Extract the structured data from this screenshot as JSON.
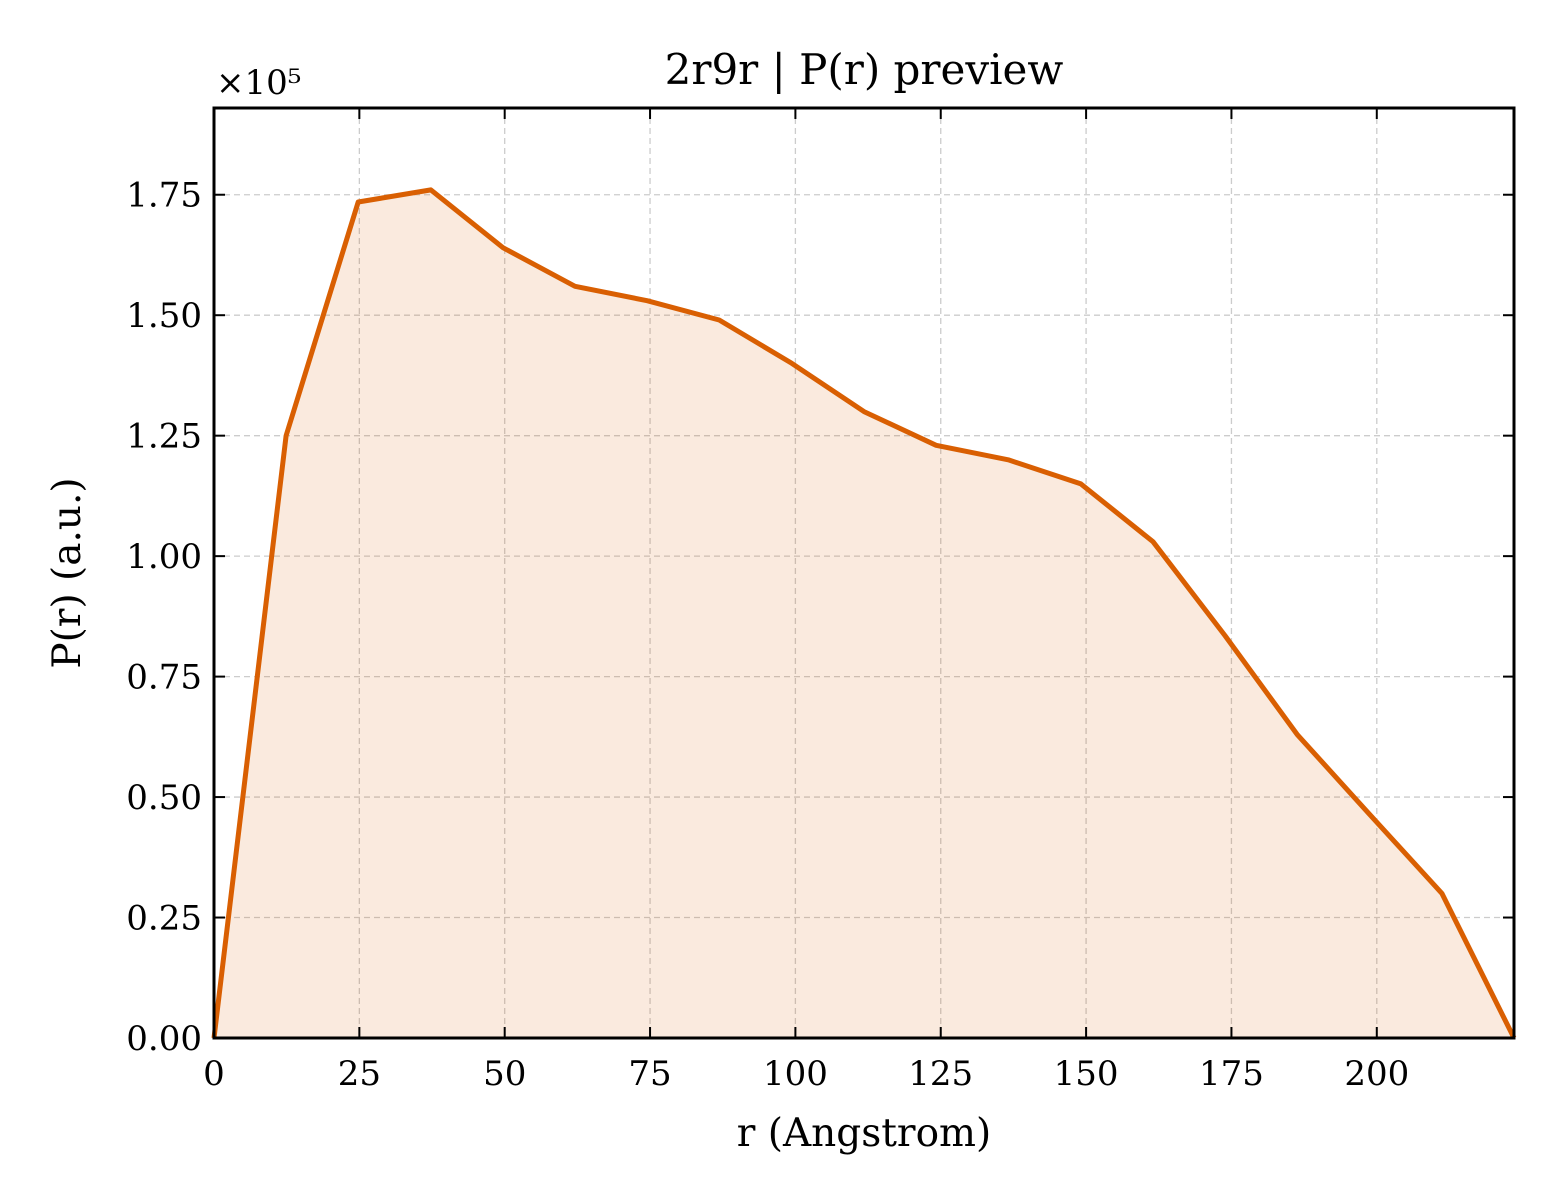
{
  "chart_data": {
    "type": "area",
    "title": "2r9r | P(r) preview",
    "xlabel": "r (Angstrom)",
    "ylabel": "P(r) (a.u.)",
    "y_scale_label": "×10⁵",
    "y_scale_factor": 100000,
    "xlim": [
      0,
      223.6
    ],
    "ylim": [
      0,
      1.93
    ],
    "x_ticks": [
      0,
      25,
      50,
      75,
      100,
      125,
      150,
      175,
      200
    ],
    "y_ticks": [
      0.0,
      0.25,
      0.5,
      0.75,
      1.0,
      1.25,
      1.5,
      1.75
    ],
    "x_tick_labels": [
      "0",
      "25",
      "50",
      "75",
      "100",
      "125",
      "150",
      "175",
      "200"
    ],
    "y_tick_labels": [
      "0.00",
      "0.25",
      "0.50",
      "0.75",
      "1.00",
      "1.25",
      "1.50",
      "1.75"
    ],
    "grid": true,
    "series": [
      {
        "x": [
          0,
          12.4,
          24.8,
          37.3,
          49.7,
          62.1,
          74.5,
          86.9,
          99.4,
          111.8,
          124.2,
          136.6,
          149.1,
          161.5,
          173.9,
          186.3,
          198.7,
          211.2,
          223.6
        ],
        "y": [
          0.0,
          1.25,
          1.735,
          1.76,
          1.64,
          1.56,
          1.53,
          1.49,
          1.4,
          1.3,
          1.23,
          1.2,
          1.15,
          1.03,
          0.835,
          0.63,
          0.465,
          0.3,
          0.0
        ],
        "color": "#d95f02",
        "fill_color": "#d95f02",
        "fill_opacity": 0.13
      }
    ]
  }
}
